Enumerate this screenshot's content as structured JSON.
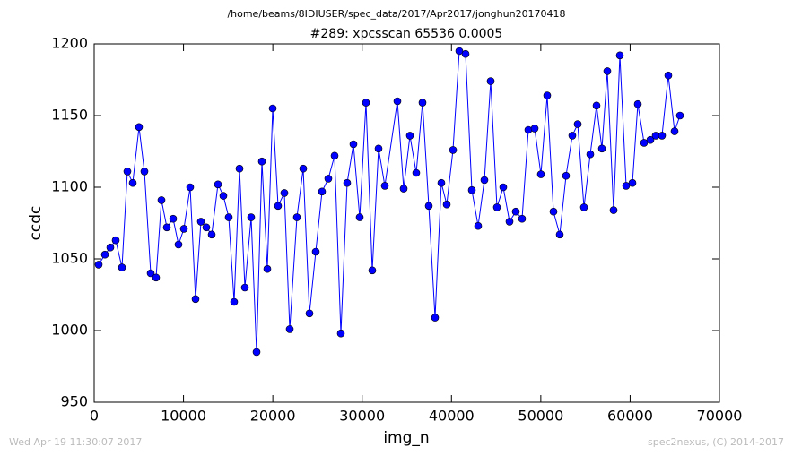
{
  "chart_data": {
    "type": "line",
    "header": "/home/beams/8IDIUSER/spec_data/2017/Apr2017/jonghun20170418",
    "title": "#289: xpcsscan 65536 0.0005",
    "xlabel": "img_n",
    "ylabel": "ccdc",
    "footer_left": "Wed Apr 19 11:30:07 2017",
    "footer_right": "spec2nexus, (C) 2014-2017",
    "xlim": [
      0,
      70000
    ],
    "xticks": [
      0,
      10000,
      20000,
      30000,
      40000,
      50000,
      60000,
      70000
    ],
    "ylim": [
      950,
      1200
    ],
    "yticks": [
      950,
      1000,
      1050,
      1100,
      1150,
      1200
    ],
    "color": "#0000ff",
    "x": [
      502,
      1205,
      1808,
      2410,
      3113,
      3716,
      4318,
      5021,
      5624,
      6327,
      6930,
      7532,
      8135,
      8838,
      9440,
      10043,
      10746,
      11348,
      11951,
      12554,
      13156,
      13859,
      14462,
      15064,
      15667,
      16270,
      16872,
      17575,
      18178,
      18780,
      19383,
      19986,
      20588,
      21291,
      21894,
      22697,
      23400,
      24103,
      24806,
      25509,
      26212,
      26915,
      27618,
      28321,
      29024,
      29727,
      30430,
      31133,
      31836,
      32539,
      33945,
      34648,
      35351,
      36054,
      36757,
      37460,
      38163,
      38866,
      39469,
      40172,
      40875,
      41578,
      42281,
      42984,
      43687,
      44390,
      45093,
      45796,
      46499,
      47202,
      47905,
      48608,
      49311,
      50014,
      50717,
      51420,
      52123,
      52826,
      53529,
      54132,
      54835,
      55538,
      56241,
      56844,
      57446,
      58149,
      58852,
      59555,
      60258,
      60861,
      61563,
      62266,
      62869,
      63572,
      64275,
      64978,
      65581
    ],
    "values": [
      1046,
      1053,
      1058,
      1063,
      1044,
      1111,
      1103,
      1142,
      1111,
      1040,
      1037,
      1091,
      1072,
      1078,
      1060,
      1071,
      1100,
      1022,
      1076,
      1072,
      1067,
      1102,
      1094,
      1079,
      1020,
      1113,
      1030,
      1079,
      985,
      1118,
      1043,
      1155,
      1087,
      1096,
      1001,
      1079,
      1113,
      1012,
      1055,
      1097,
      1106,
      1122,
      998,
      1103,
      1130,
      1079,
      1159,
      1042,
      1127,
      1101,
      1160,
      1099,
      1136,
      1110,
      1159,
      1087,
      1009,
      1103,
      1088,
      1126,
      1195,
      1193,
      1098,
      1073,
      1105,
      1174,
      1086,
      1100,
      1076,
      1083,
      1078,
      1140,
      1141,
      1109,
      1164,
      1083,
      1067,
      1108,
      1136,
      1144,
      1086,
      1123,
      1157,
      1127,
      1181,
      1084,
      1192,
      1101,
      1103,
      1158,
      1131,
      1133,
      1136,
      1136,
      1178,
      1139,
      1150
    ]
  }
}
